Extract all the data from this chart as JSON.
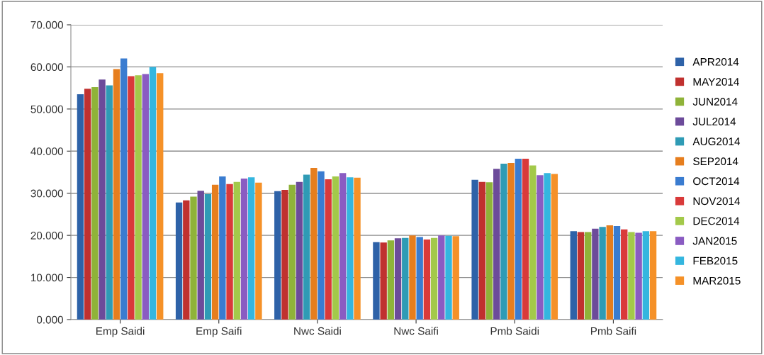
{
  "chart_data": {
    "type": "bar",
    "categories": [
      "Emp Saidi",
      "Emp Saifi",
      "Nwc Saidi",
      "Nwc Saifi",
      "Pmb Saidi",
      "Pmb Saifi"
    ],
    "series": [
      {
        "name": "APR2014",
        "color": "#2e62a8",
        "values": [
          53.5,
          27.8,
          30.5,
          18.4,
          33.2,
          21.0
        ]
      },
      {
        "name": "MAY2014",
        "color": "#c0312f",
        "values": [
          54.8,
          28.3,
          30.8,
          18.3,
          32.7,
          20.8
        ]
      },
      {
        "name": "JUN2014",
        "color": "#8fb339",
        "values": [
          55.2,
          29.2,
          32.0,
          18.8,
          32.6,
          20.8
        ]
      },
      {
        "name": "JUL2014",
        "color": "#6c4b9a",
        "values": [
          57.0,
          30.6,
          32.7,
          19.3,
          35.8,
          21.6
        ]
      },
      {
        "name": "AUG2014",
        "color": "#2f9bb5",
        "values": [
          55.6,
          29.8,
          34.4,
          19.4,
          37.0,
          22.0
        ]
      },
      {
        "name": "SEP2014",
        "color": "#e67e1e",
        "values": [
          59.5,
          32.0,
          36.0,
          20.0,
          37.2,
          22.4
        ]
      },
      {
        "name": "OCT2014",
        "color": "#3a7cd0",
        "values": [
          62.0,
          34.0,
          35.2,
          19.6,
          38.2,
          22.2
        ]
      },
      {
        "name": "NOV2014",
        "color": "#d93a3a",
        "values": [
          57.8,
          32.2,
          33.3,
          19.0,
          38.2,
          21.4
        ]
      },
      {
        "name": "DEC2014",
        "color": "#a3c94a",
        "values": [
          58.0,
          32.7,
          34.0,
          19.4,
          36.6,
          20.8
        ]
      },
      {
        "name": "JAN2015",
        "color": "#8a5cc2",
        "values": [
          58.3,
          33.5,
          34.8,
          20.0,
          34.3,
          20.6
        ]
      },
      {
        "name": "FEB2015",
        "color": "#34b6df",
        "values": [
          60.0,
          33.8,
          33.8,
          19.9,
          34.8,
          21.0
        ]
      },
      {
        "name": "MAR2015",
        "color": "#f59128",
        "values": [
          58.5,
          32.5,
          33.7,
          19.8,
          34.6,
          21.0
        ]
      }
    ],
    "ylim": [
      0,
      70
    ],
    "yticks": [
      {
        "value": 0,
        "label": "0.000"
      },
      {
        "value": 10,
        "label": "10.000"
      },
      {
        "value": 20,
        "label": "20.000"
      },
      {
        "value": 30,
        "label": "30.000"
      },
      {
        "value": 40,
        "label": "40.000"
      },
      {
        "value": 50,
        "label": "50.000"
      },
      {
        "value": 60,
        "label": "60.000"
      },
      {
        "value": 70,
        "label": "70.000"
      }
    ],
    "grid": "y",
    "legend": "right"
  }
}
